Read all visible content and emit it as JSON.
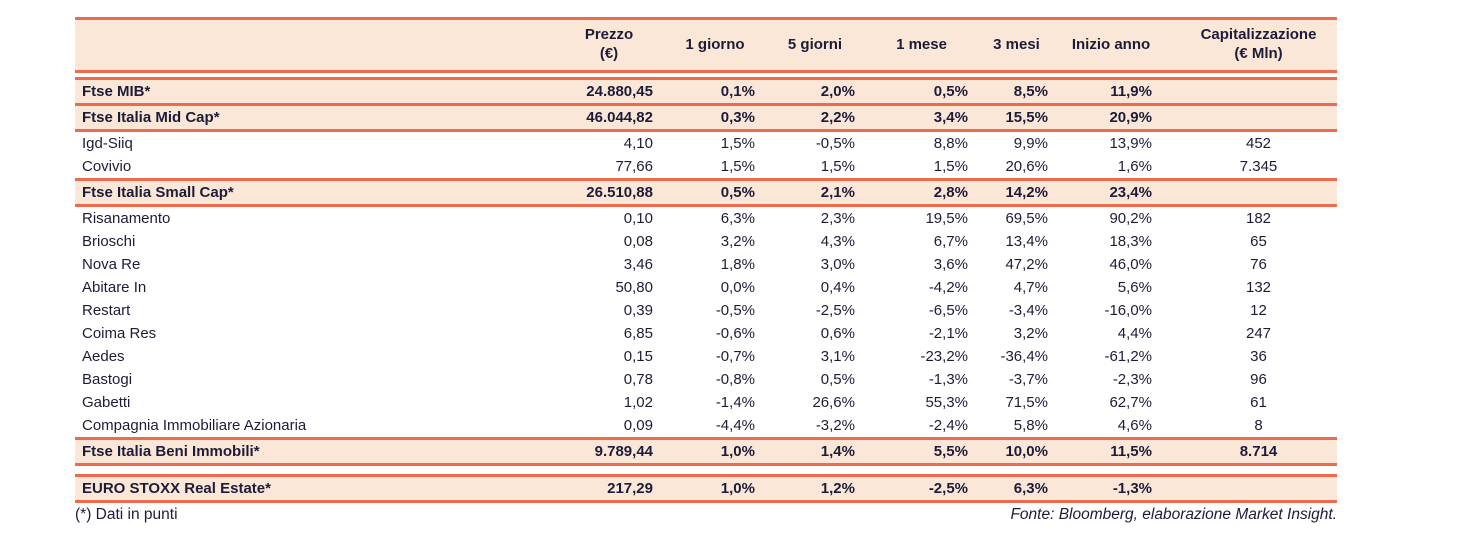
{
  "colors": {
    "accent_red": "#EE6A4D",
    "row_highlight": "#FBE7D8",
    "text": "#1D1C38",
    "background": "#FFFFFF"
  },
  "table": {
    "columns": [
      {
        "id": "name",
        "line1": "",
        "line2": ""
      },
      {
        "id": "prezzo",
        "line1": "Prezzo",
        "line2": "(€)"
      },
      {
        "id": "1-giorno",
        "line1": "1 giorno",
        "line2": ""
      },
      {
        "id": "5-giorni",
        "line1": "5 giorni",
        "line2": ""
      },
      {
        "id": "1-mese",
        "line1": "1 mese",
        "line2": ""
      },
      {
        "id": "3-mesi",
        "line1": "3 mesi",
        "line2": ""
      },
      {
        "id": "inizio-anno",
        "line1": "Inizio anno",
        "line2": ""
      },
      {
        "id": "capitalizzazione",
        "line1": "Capitalizzazione",
        "line2": "(€ Mln)"
      }
    ],
    "rows": [
      {
        "type": "index",
        "cells": [
          "Ftse MIB*",
          "24.880,45",
          "0,1%",
          "2,0%",
          "0,5%",
          "8,5%",
          "11,9%",
          ""
        ]
      },
      {
        "type": "index",
        "cells": [
          "Ftse Italia Mid Cap*",
          "46.044,82",
          "0,3%",
          "2,2%",
          "3,4%",
          "15,5%",
          "20,9%",
          ""
        ]
      },
      {
        "type": "stock",
        "cells": [
          "Igd-Siiq",
          "4,10",
          "1,5%",
          "-0,5%",
          "8,8%",
          "9,9%",
          "13,9%",
          "452"
        ]
      },
      {
        "type": "stock",
        "cells": [
          "Covivio",
          "77,66",
          "1,5%",
          "1,5%",
          "1,5%",
          "20,6%",
          "1,6%",
          "7.345"
        ]
      },
      {
        "type": "index",
        "cells": [
          "Ftse Italia Small Cap*",
          "26.510,88",
          "0,5%",
          "2,1%",
          "2,8%",
          "14,2%",
          "23,4%",
          ""
        ]
      },
      {
        "type": "stock",
        "cells": [
          "Risanamento",
          "0,10",
          "6,3%",
          "2,3%",
          "19,5%",
          "69,5%",
          "90,2%",
          "182"
        ]
      },
      {
        "type": "stock",
        "cells": [
          "Brioschi",
          "0,08",
          "3,2%",
          "4,3%",
          "6,7%",
          "13,4%",
          "18,3%",
          "65"
        ]
      },
      {
        "type": "stock",
        "cells": [
          "Nova Re",
          "3,46",
          "1,8%",
          "3,0%",
          "3,6%",
          "47,2%",
          "46,0%",
          "76"
        ]
      },
      {
        "type": "stock",
        "cells": [
          "Abitare In",
          "50,80",
          "0,0%",
          "0,4%",
          "-4,2%",
          "4,7%",
          "5,6%",
          "132"
        ]
      },
      {
        "type": "stock",
        "cells": [
          "Restart",
          "0,39",
          "-0,5%",
          "-2,5%",
          "-6,5%",
          "-3,4%",
          "-16,0%",
          "12"
        ]
      },
      {
        "type": "stock",
        "cells": [
          "Coima Res",
          "6,85",
          "-0,6%",
          "0,6%",
          "-2,1%",
          "3,2%",
          "4,4%",
          "247"
        ]
      },
      {
        "type": "stock",
        "cells": [
          "Aedes",
          "0,15",
          "-0,7%",
          "3,1%",
          "-23,2%",
          "-36,4%",
          "-61,2%",
          "36"
        ]
      },
      {
        "type": "stock",
        "cells": [
          "Bastogi",
          "0,78",
          "-0,8%",
          "0,5%",
          "-1,3%",
          "-3,7%",
          "-2,3%",
          "96"
        ]
      },
      {
        "type": "stock",
        "cells": [
          "Gabetti",
          "1,02",
          "-1,4%",
          "26,6%",
          "55,3%",
          "71,5%",
          "62,7%",
          "61"
        ]
      },
      {
        "type": "stock",
        "cells": [
          "Compagnia Immobiliare Azionaria",
          "0,09",
          "-4,4%",
          "-3,2%",
          "-2,4%",
          "5,8%",
          "4,6%",
          "8"
        ]
      },
      {
        "type": "index",
        "cells": [
          "Ftse Italia Beni Immobili*",
          "9.789,44",
          "1,0%",
          "1,4%",
          "5,5%",
          "10,0%",
          "11,5%",
          "8.714"
        ]
      },
      {
        "type": "index",
        "gap_before": true,
        "cells": [
          "EURO STOXX Real Estate*",
          "217,29",
          "1,0%",
          "1,2%",
          "-2,5%",
          "6,3%",
          "-1,3%",
          ""
        ]
      }
    ]
  },
  "footer": {
    "left": "(*) Dati in punti",
    "right": "Fonte: Bloomberg, elaborazione Market Insight."
  }
}
